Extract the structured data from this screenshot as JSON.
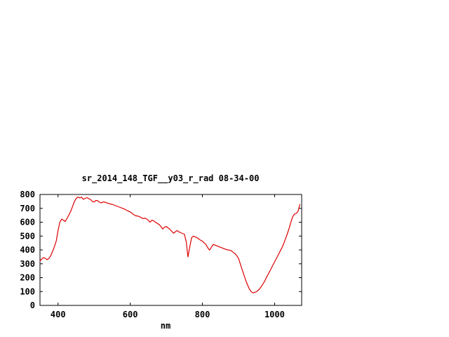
{
  "page": {
    "background": "#ffffff"
  },
  "chart_data": {
    "type": "line",
    "title": "sr_2014_148_TGF__y03_r_rad 08-34-00",
    "xlabel": "nm",
    "ylabel": "",
    "xlim": [
      350,
      1075
    ],
    "ylim": [
      0,
      800
    ],
    "xticks": [
      400,
      600,
      800,
      1000
    ],
    "yticks": [
      0,
      100,
      200,
      300,
      400,
      500,
      600,
      700,
      800
    ],
    "grid": false,
    "legend_position": "none",
    "line_color": "#dd0000",
    "axis_color": "#000000",
    "series": [
      {
        "name": "sr_2014_148_TGF__y03_r_rad",
        "x": [
          350,
          355,
          360,
          365,
          370,
          375,
          380,
          385,
          390,
          395,
          400,
          405,
          410,
          415,
          420,
          425,
          430,
          435,
          440,
          445,
          450,
          455,
          460,
          465,
          470,
          475,
          480,
          485,
          490,
          495,
          500,
          505,
          510,
          515,
          520,
          525,
          530,
          535,
          540,
          545,
          550,
          555,
          560,
          565,
          570,
          575,
          580,
          585,
          590,
          595,
          600,
          605,
          610,
          615,
          620,
          625,
          630,
          635,
          640,
          645,
          650,
          655,
          660,
          665,
          670,
          675,
          680,
          685,
          690,
          695,
          700,
          705,
          710,
          715,
          720,
          725,
          730,
          735,
          740,
          745,
          750,
          755,
          760,
          765,
          770,
          775,
          780,
          785,
          790,
          795,
          800,
          805,
          810,
          815,
          820,
          825,
          830,
          835,
          840,
          845,
          850,
          855,
          860,
          865,
          870,
          875,
          880,
          885,
          890,
          895,
          900,
          905,
          910,
          915,
          920,
          925,
          930,
          935,
          940,
          945,
          950,
          955,
          960,
          965,
          970,
          975,
          980,
          985,
          990,
          995,
          1000,
          1005,
          1010,
          1015,
          1020,
          1025,
          1030,
          1035,
          1040,
          1045,
          1050,
          1055,
          1060,
          1065,
          1070
        ],
        "values": [
          320,
          335,
          345,
          338,
          330,
          340,
          360,
          390,
          425,
          465,
          540,
          600,
          622,
          615,
          605,
          628,
          652,
          678,
          712,
          748,
          770,
          782,
          775,
          781,
          765,
          772,
          777,
          770,
          764,
          750,
          746,
          757,
          755,
          744,
          740,
          746,
          745,
          739,
          735,
          731,
          729,
          724,
          719,
          714,
          709,
          704,
          699,
          693,
          686,
          680,
          674,
          664,
          654,
          646,
          645,
          640,
          634,
          626,
          630,
          624,
          614,
          600,
          615,
          609,
          600,
          591,
          584,
          569,
          551,
          564,
          569,
          559,
          549,
          534,
          521,
          531,
          540,
          530,
          524,
          519,
          514,
          462,
          350,
          422,
          488,
          500,
          494,
          489,
          479,
          470,
          464,
          450,
          439,
          415,
          399,
          421,
          440,
          435,
          430,
          424,
          419,
          414,
          409,
          404,
          400,
          399,
          394,
          384,
          374,
          359,
          339,
          300,
          259,
          219,
          180,
          149,
          119,
          100,
          90,
          94,
          100,
          110,
          124,
          144,
          164,
          189,
          214,
          239,
          264,
          289,
          314,
          339,
          364,
          389,
          414,
          444,
          479,
          514,
          554,
          599,
          639,
          658,
          664,
          679,
          728
        ]
      }
    ]
  }
}
